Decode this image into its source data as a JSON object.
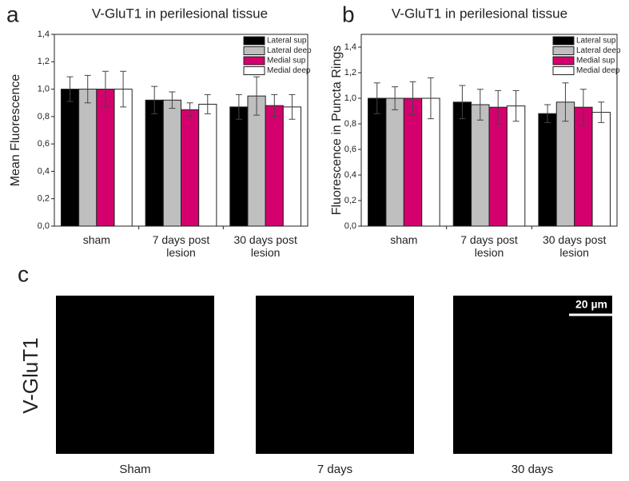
{
  "chart_data": [
    {
      "type": "bar",
      "panel_label": "a",
      "title": "V-GluT1 in perilesional tissue",
      "y_label": "Mean Fluorescence",
      "categories": [
        "sham",
        "7 days post lesion",
        "30 days post lesion"
      ],
      "series": [
        {
          "name": "Lateral sup",
          "color": "#000000",
          "values": [
            1.0,
            0.92,
            0.87
          ],
          "errors": [
            0.09,
            0.1,
            0.09
          ]
        },
        {
          "name": "Lateral deep",
          "color": "#bfbfbf",
          "values": [
            1.0,
            0.92,
            0.95
          ],
          "errors": [
            0.1,
            0.06,
            0.14
          ]
        },
        {
          "name": "Medial sup",
          "color": "#d4006e",
          "values": [
            1.0,
            0.85,
            0.88
          ],
          "errors": [
            0.13,
            0.05,
            0.08
          ]
        },
        {
          "name": "Medial deep",
          "color": "#ffffff",
          "values": [
            1.0,
            0.89,
            0.87
          ],
          "errors": [
            0.13,
            0.07,
            0.09
          ]
        }
      ],
      "ylim": [
        0,
        1.4
      ],
      "yticks": [
        {
          "value": 0,
          "label": "0,0"
        },
        {
          "value": 0.2,
          "label": "0,2"
        },
        {
          "value": 0.4,
          "label": "0,4"
        },
        {
          "value": 0.6,
          "label": "0,6"
        },
        {
          "value": 0.8,
          "label": "0,8"
        },
        {
          "value": 1.0,
          "label": "1,0"
        },
        {
          "value": 1.2,
          "label": "1,2"
        },
        {
          "value": 1.4,
          "label": "1,4"
        }
      ],
      "legend": "upper right",
      "grid": false
    },
    {
      "type": "bar",
      "panel_label": "b",
      "title": "V-GluT1 in perilesional tissue",
      "y_label": "Fluorescence in Puncta Rings",
      "categories": [
        "sham",
        "7 days post lesion",
        "30 days post lesion"
      ],
      "series": [
        {
          "name": "Lateral sup",
          "color": "#000000",
          "values": [
            1.0,
            0.97,
            0.88
          ],
          "errors": [
            0.12,
            0.13,
            0.07
          ]
        },
        {
          "name": "Lateral deep",
          "color": "#bfbfbf",
          "values": [
            1.0,
            0.95,
            0.97
          ],
          "errors": [
            0.09,
            0.12,
            0.15
          ]
        },
        {
          "name": "Medial sup",
          "color": "#d4006e",
          "values": [
            1.0,
            0.93,
            0.93
          ],
          "errors": [
            0.13,
            0.13,
            0.14
          ]
        },
        {
          "name": "Medial deep",
          "color": "#ffffff",
          "values": [
            1.0,
            0.94,
            0.89
          ],
          "errors": [
            0.16,
            0.12,
            0.08
          ]
        }
      ],
      "ylim": [
        0,
        1.5
      ],
      "yticks": [
        {
          "value": 0,
          "label": "0,0"
        },
        {
          "value": 0.2,
          "label": "0,2"
        },
        {
          "value": 0.4,
          "label": "0,4"
        },
        {
          "value": 0.6,
          "label": "0,6"
        },
        {
          "value": 0.8,
          "label": "0,8"
        },
        {
          "value": 1.0,
          "label": "1,0"
        },
        {
          "value": 1.2,
          "label": "1,2"
        },
        {
          "value": 1.4,
          "label": "1,4"
        }
      ],
      "legend": "upper right",
      "grid": false
    }
  ],
  "figure": {
    "panel_label": "c",
    "row_label": "V-GluT1",
    "captions": [
      "Sham",
      "7 days",
      "30 days"
    ],
    "scale_bar": "20 µm"
  }
}
